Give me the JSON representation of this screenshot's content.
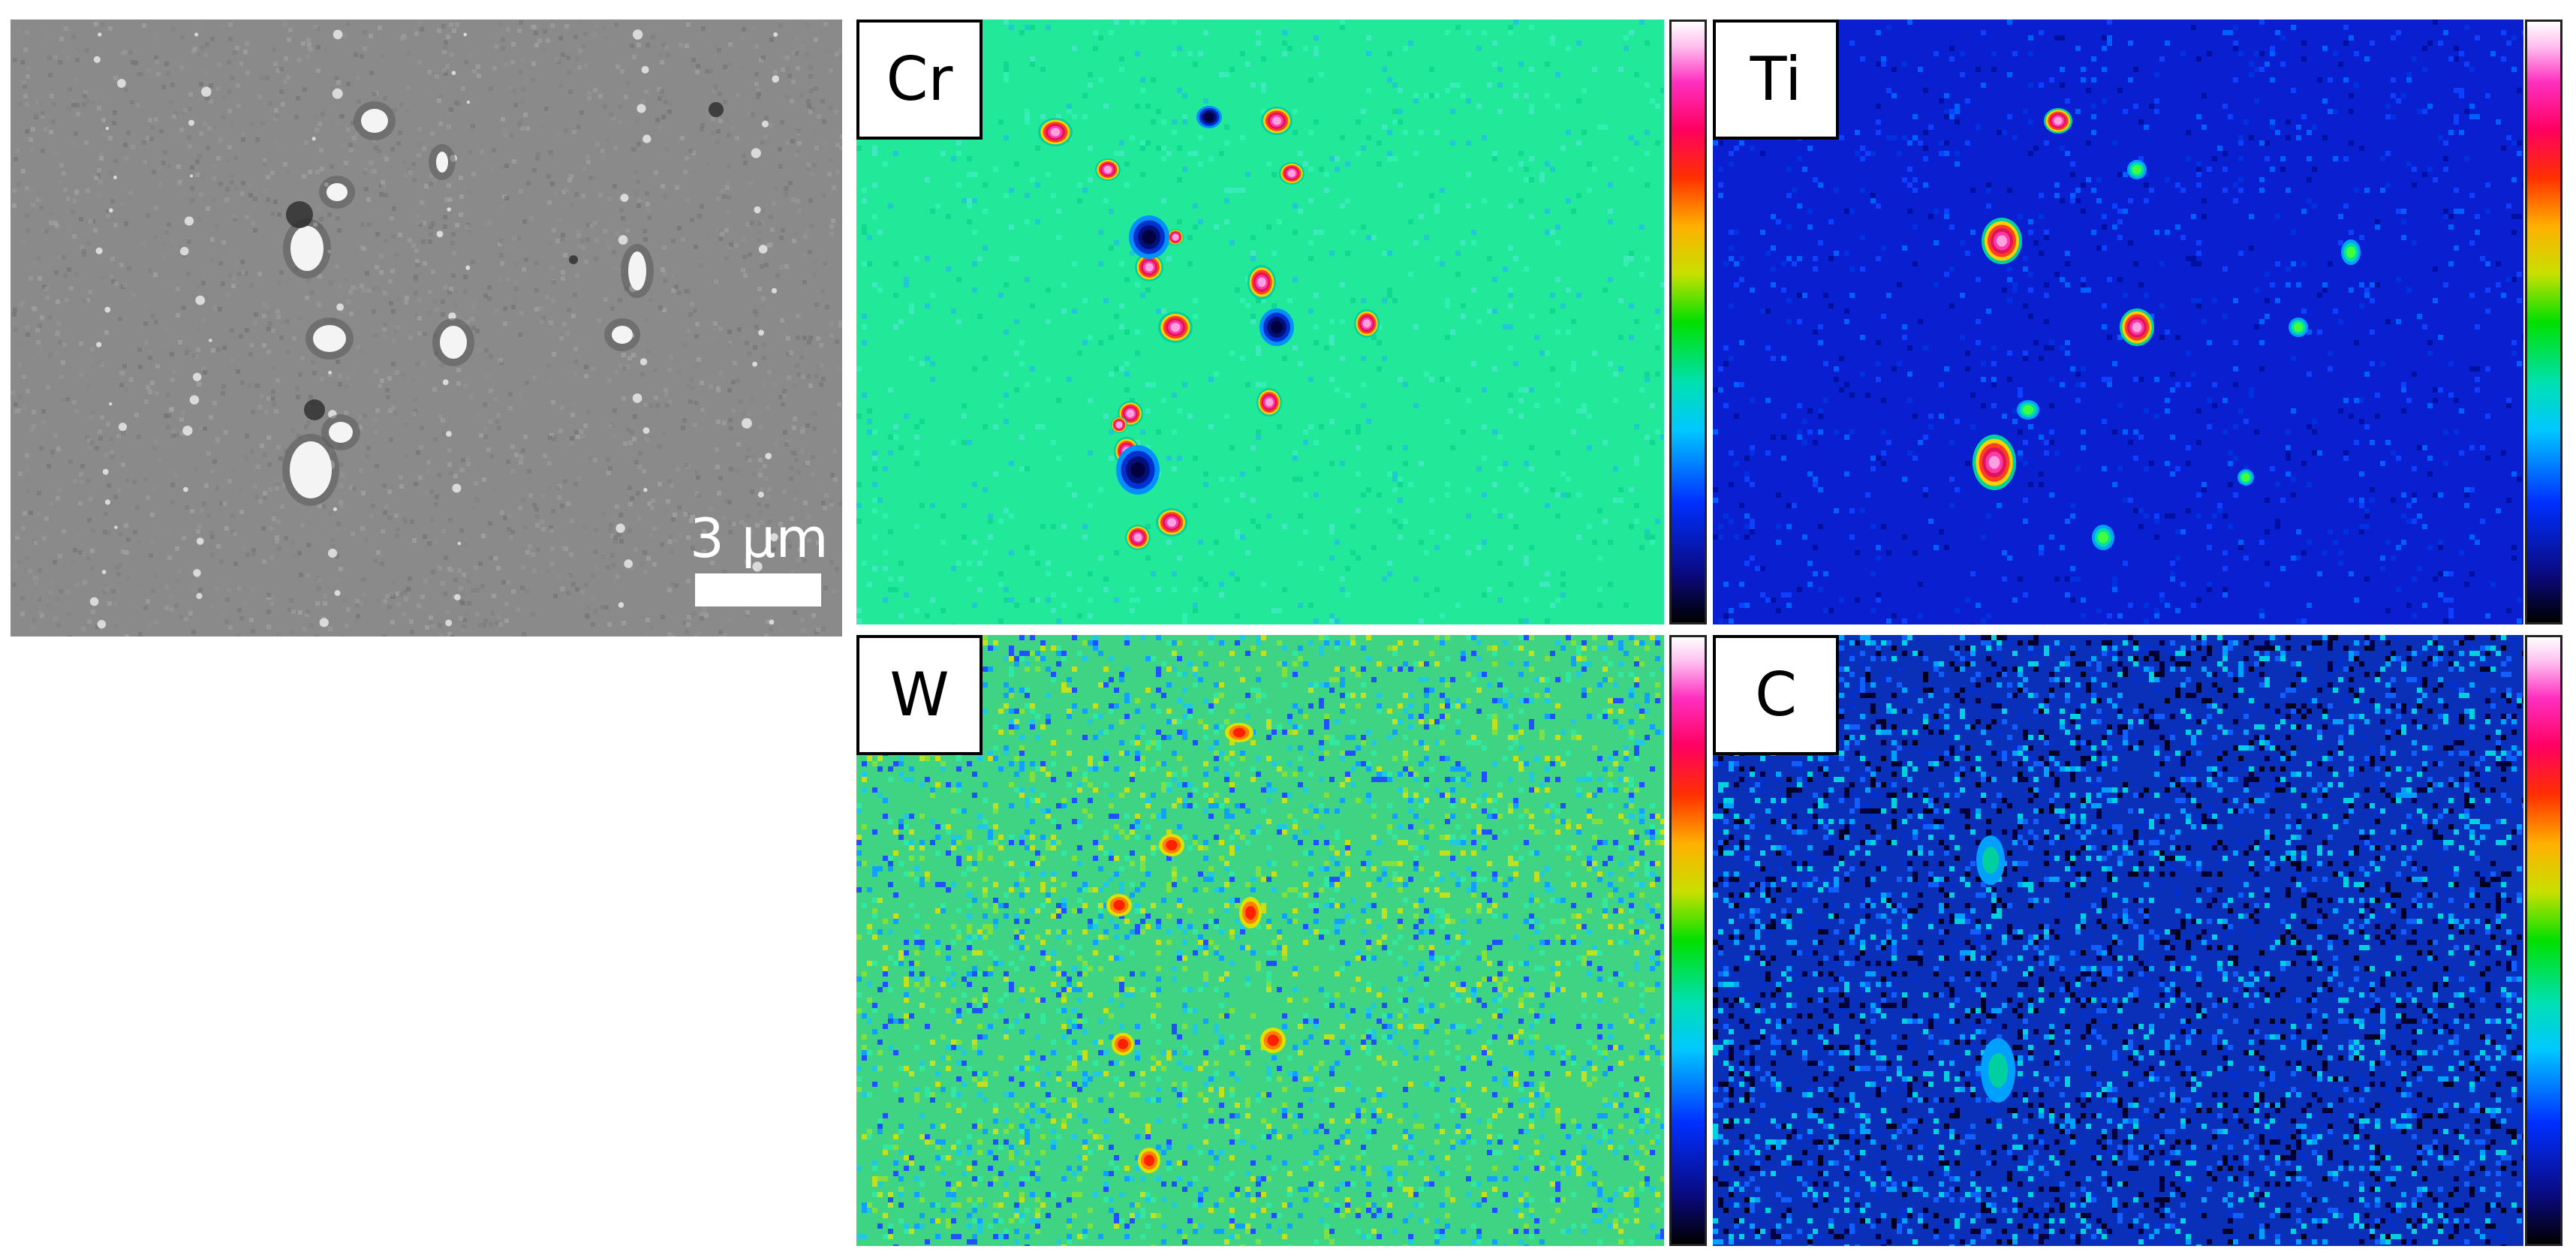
{
  "figure": {
    "sem_image": {
      "scale_bar_label": "3 µm"
    },
    "maps": [
      {
        "element": "Cr",
        "background": "#22e89a",
        "noise": 0.15,
        "colorbar": "full"
      },
      {
        "element": "Ti",
        "background": "#0a1fd0",
        "noise": 0.18,
        "colorbar": "full"
      },
      {
        "element": "W",
        "background": "#3fd483",
        "noise": 0.55,
        "colorbar": "full"
      },
      {
        "element": "C",
        "background": "#0a2fb8",
        "noise": 0.75,
        "colorbar": "full"
      }
    ],
    "colors": {
      "sem_gray": "#8a8a8a",
      "sem_particle": "#f4f4f4",
      "hot_red": "#e0135a",
      "hot_magenta": "#ff3aa8",
      "depleted_blue": "#00107a",
      "depleted_black": "#000040"
    }
  }
}
